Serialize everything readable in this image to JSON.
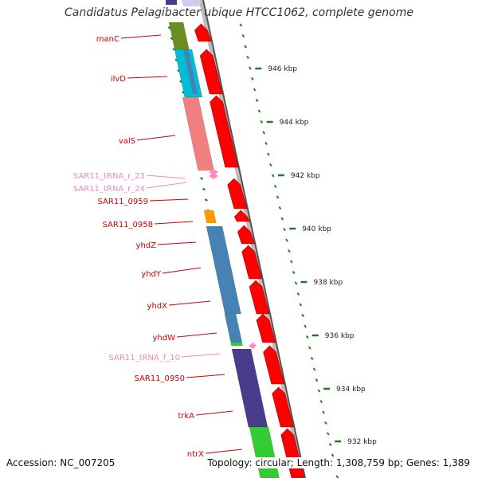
{
  "title": "Candidatus Pelagibacter ubique HTCC1062, complete genome",
  "footer": {
    "accession": "Accession: NC_007205",
    "summary": "Topology: circular; Length: 1,308,759 bp; Genes: 1,389"
  },
  "colors": {
    "gene_label": "#d00000",
    "trna_label": "#ee88bb",
    "kbp_tick": "#1e7a1e",
    "backbone": "#555555",
    "orf_arrow": "#ff0000",
    "manC": "#6b8e23",
    "ilvD": "#00bcd4",
    "valS": "#f08080",
    "SAR11_0958": "#ff9900",
    "yhd": "#4682b4",
    "yhdW_green": "#33cc33",
    "trkA": "#483d8b",
    "ntrX": "#33cc33"
  },
  "scale": {
    "unit": "kbp",
    "ticks": [
      "946 kbp",
      "944 kbp",
      "942 kbp",
      "940 kbp",
      "938 kbp",
      "936 kbp",
      "934 kbp",
      "932 kbp"
    ]
  },
  "genes": [
    {
      "name": "manC",
      "kind": "gene"
    },
    {
      "name": "ilvD",
      "kind": "gene"
    },
    {
      "name": "valS",
      "kind": "gene"
    },
    {
      "name": "SAR11_tRNA_r_23",
      "kind": "trna"
    },
    {
      "name": "SAR11_tRNA_r_24",
      "kind": "trna"
    },
    {
      "name": "SAR11_0959",
      "kind": "gene"
    },
    {
      "name": "SAR11_0958",
      "kind": "gene"
    },
    {
      "name": "yhdZ",
      "kind": "gene"
    },
    {
      "name": "yhdY",
      "kind": "gene"
    },
    {
      "name": "yhdX",
      "kind": "gene"
    },
    {
      "name": "yhdW",
      "kind": "gene"
    },
    {
      "name": "SAR11_tRNA_f_10",
      "kind": "trna"
    },
    {
      "name": "SAR11_0950",
      "kind": "gene"
    },
    {
      "name": "trkA",
      "kind": "gene"
    },
    {
      "name": "ntrX",
      "kind": "gene"
    }
  ]
}
